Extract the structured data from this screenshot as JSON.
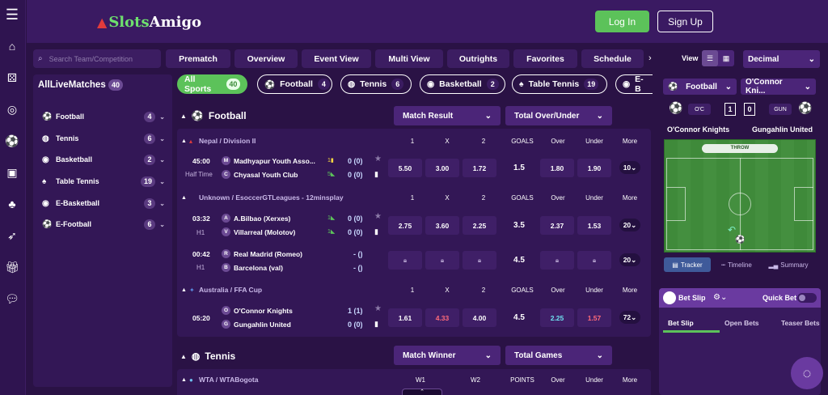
{
  "brand": {
    "logo_a": "Slots",
    "logo_b": "Amigo"
  },
  "header": {
    "login": "Log In",
    "signup": "Sign Up"
  },
  "search": {
    "placeholder": "Search Team/Competition"
  },
  "nav_tabs": [
    "Prematch",
    "Overview",
    "Event View",
    "Multi View",
    "Outrights",
    "Favorites",
    "Schedule"
  ],
  "view": {
    "label": "View",
    "odds_format": "Decimal"
  },
  "sidebar": {
    "title": "AllLiveMatches",
    "count": "40",
    "items": [
      {
        "label": "Football",
        "count": "4",
        "icon": "soccer-ball-icon"
      },
      {
        "label": "Tennis",
        "count": "6",
        "icon": "tennis-ball-icon"
      },
      {
        "label": "Basketball",
        "count": "2",
        "icon": "basketball-icon"
      },
      {
        "label": "Table Tennis",
        "count": "19",
        "icon": "table-tennis-icon"
      },
      {
        "label": "E-Basketball",
        "count": "3",
        "icon": "basketball-icon"
      },
      {
        "label": "E-Football",
        "count": "6",
        "icon": "soccer-ball-icon"
      }
    ]
  },
  "sport_pills": [
    {
      "label": "All Sports",
      "count": "40"
    },
    {
      "label": "Football",
      "count": "4"
    },
    {
      "label": "Tennis",
      "count": "6"
    },
    {
      "label": "Basketball",
      "count": "2"
    },
    {
      "label": "Table Tennis",
      "count": "19"
    },
    {
      "label": "E-B",
      "count": ""
    }
  ],
  "football": {
    "title": "Football",
    "market1": "Match Result",
    "market2": "Total Over/Under"
  },
  "columns": {
    "c1": "1",
    "cx": "X",
    "c2": "2",
    "goals": "GOALS",
    "over": "Over",
    "under": "Under",
    "more": "More"
  },
  "leagues": [
    {
      "name": "Nepal / Division II"
    },
    {
      "name": "Unknown / EsoccerGTLeagues - 12minsplay"
    },
    {
      "name": "Australia / FFA Cup"
    }
  ],
  "matches": [
    {
      "time": "45:00",
      "period": "Half Time",
      "t1": "Madhyapur Youth Asso...",
      "t1b": "M",
      "t2": "Chyasal Youth Club",
      "t2b": "C",
      "s1": "0 (0)",
      "s2": "0 (0)",
      "odds": [
        "5.50",
        "3.00",
        "1.72"
      ],
      "goals": "1.5",
      "over": "1.80",
      "under": "1.90",
      "more": "10"
    },
    {
      "time": "03:32",
      "period": "H1",
      "t1": "A.Bilbao (Xerxes)",
      "t1b": "A",
      "t2": "Villarreal (Molotov)",
      "t2b": "V",
      "s1": "0 (0)",
      "s2": "0 (0)",
      "odds": [
        "2.75",
        "3.60",
        "2.25"
      ],
      "goals": "3.5",
      "over": "2.37",
      "under": "1.53",
      "more": "20"
    },
    {
      "time": "00:42",
      "period": "H1",
      "t1": "Real Madrid (Romeo)",
      "t1b": "R",
      "t2": "Barcelona (val)",
      "t2b": "B",
      "s1": "- ()",
      "s2": "- ()",
      "odds": [
        "",
        "",
        ""
      ],
      "goals": "4.5",
      "over": "",
      "under": "",
      "more": "20"
    },
    {
      "time": "05:20",
      "period": "",
      "t1": "O'Connor Knights",
      "t1b": "O",
      "t2": "Gungahlin United",
      "t2b": "G",
      "s1": "1 (1)",
      "s2": "0 (0)",
      "odds": [
        "1.61",
        "4.33",
        "4.00"
      ],
      "goals": "4.5",
      "over": "2.25",
      "under": "1.57",
      "more": "72"
    }
  ],
  "tennis": {
    "title": "Tennis",
    "market1": "Match Winner",
    "market2": "Total Games",
    "league": "WTA / WTABogota",
    "w1": "W1",
    "w2": "W2",
    "points": "POINTS",
    "over": "Over",
    "under": "Under",
    "more": "More"
  },
  "tracker": {
    "sport": "Football",
    "match": "O'Connor Kni...",
    "home_abbr": "O'C",
    "away_abbr": "GUN",
    "home_score": "1",
    "away_score": "0",
    "home": "O'Connor Knights",
    "away": "Gungahlin United",
    "event": "THROW",
    "tabs": [
      "Tracker",
      "Timeline",
      "Summary"
    ]
  },
  "betslip": {
    "title": "Bet Slip",
    "quick": "Quick Bet",
    "tabs": [
      "Bet Slip",
      "Open Bets",
      "Teaser Bets"
    ]
  },
  "colors": {
    "green": "#5cc25a",
    "bg": "#2a1245",
    "panel": "#331756",
    "red_odd": "#ff6b7a",
    "cyan_odd": "#6ee0f0"
  }
}
